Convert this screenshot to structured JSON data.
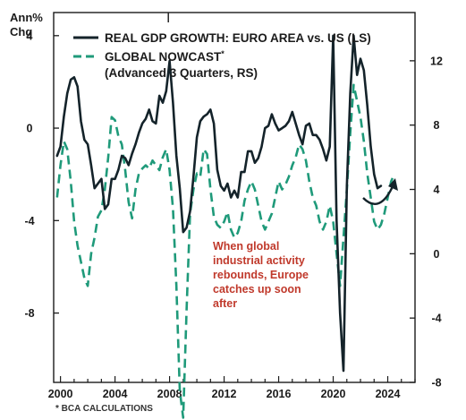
{
  "chart_data": {
    "type": "line",
    "ylabel_left": [
      "Ann%",
      "Chg"
    ],
    "ylim_left": [
      -11,
      5
    ],
    "yticks_left": [
      4,
      0,
      -4,
      -8
    ],
    "ylim_right": [
      -8,
      15
    ],
    "yticks_right": [
      12,
      8,
      4,
      0,
      -4,
      -8
    ],
    "xlim": [
      1999.5,
      2026.0
    ],
    "xticks": [
      2000,
      2004,
      2008,
      2012,
      2016,
      2020,
      2024
    ],
    "legend": {
      "solid_label": "REAL GDP GROWTH: EURO AREA vs. US (LS)",
      "dashed_label": "GLOBAL NOWCAST",
      "dashed_mark": "*",
      "dashed_sub": "(Advanced 3 Quarters, RS)"
    },
    "series": [
      {
        "name": "REAL GDP GROWTH: EURO AREA vs. US (LS)",
        "axis": "left",
        "style": "solid",
        "color": "#14232a",
        "x": [
          1999.75,
          2000.0,
          2000.25,
          2000.5,
          2000.75,
          2001.0,
          2001.25,
          2001.5,
          2001.75,
          2002.0,
          2002.25,
          2002.5,
          2002.75,
          2003.0,
          2003.25,
          2003.5,
          2003.75,
          2004.0,
          2004.25,
          2004.5,
          2004.75,
          2005.0,
          2005.25,
          2005.5,
          2005.75,
          2006.0,
          2006.25,
          2006.5,
          2006.75,
          2007.0,
          2007.25,
          2007.5,
          2007.75,
          2008.0,
          2008.25,
          2008.5,
          2008.75,
          2009.0,
          2009.25,
          2009.5,
          2009.75,
          2010.0,
          2010.25,
          2010.5,
          2010.75,
          2011.0,
          2011.25,
          2011.5,
          2011.75,
          2012.0,
          2012.25,
          2012.5,
          2012.75,
          2013.0,
          2013.25,
          2013.5,
          2013.75,
          2014.0,
          2014.25,
          2014.5,
          2014.75,
          2015.0,
          2015.25,
          2015.5,
          2015.75,
          2016.0,
          2016.25,
          2016.5,
          2016.75,
          2017.0,
          2017.25,
          2017.5,
          2017.75,
          2018.0,
          2018.25,
          2018.5,
          2018.75,
          2019.0,
          2019.25,
          2019.5,
          2019.75,
          2020.0,
          2020.25,
          2020.5,
          2020.75,
          2021.0,
          2021.25,
          2021.5,
          2021.75,
          2022.0,
          2022.25,
          2022.5,
          2022.75,
          2023.0,
          2023.25,
          2023.5
        ],
        "values": [
          -1.2,
          -0.8,
          0.5,
          1.5,
          2.1,
          2.2,
          1.8,
          0.3,
          -0.5,
          -0.7,
          -1.6,
          -2.6,
          -2.4,
          -2.2,
          -3.5,
          -3.3,
          -2.2,
          -2.2,
          -1.8,
          -1.2,
          -1.3,
          -1.6,
          -1.1,
          -0.7,
          -0.2,
          0.2,
          0.4,
          0.8,
          0.3,
          0.2,
          1.4,
          1.1,
          1.6,
          2.9,
          1.1,
          -1.2,
          -2.6,
          -4.5,
          -4.3,
          -3.6,
          -2.1,
          -0.4,
          0.3,
          0.5,
          0.6,
          0.8,
          0.2,
          -1.8,
          -2.5,
          -2.7,
          -2.4,
          -3.0,
          -2.7,
          -3.0,
          -1.9,
          -1.9,
          -1.0,
          -1.0,
          -1.5,
          -1.3,
          -0.8,
          0.0,
          0.1,
          0.6,
          0.2,
          -0.1,
          0.0,
          0.1,
          0.3,
          0.7,
          0.2,
          -0.3,
          -0.7,
          0.1,
          0.2,
          -0.3,
          -0.3,
          -0.5,
          -0.9,
          -1.4,
          -0.8,
          4.0,
          -4.0,
          -8.0,
          -10.5,
          -2.5,
          1.5,
          4.0,
          2.3,
          3.0,
          2.5,
          1.0,
          -0.8,
          -2.0,
          -2.6,
          -2.5
        ]
      },
      {
        "name": "GLOBAL NOWCAST",
        "axis": "right",
        "style": "dashed",
        "color": "#1f9a7a",
        "x": [
          1999.75,
          2000.0,
          2000.25,
          2000.5,
          2000.75,
          2001.0,
          2001.25,
          2001.5,
          2001.75,
          2002.0,
          2002.25,
          2002.5,
          2002.75,
          2003.0,
          2003.25,
          2003.5,
          2003.75,
          2004.0,
          2004.25,
          2004.5,
          2004.75,
          2005.0,
          2005.25,
          2005.5,
          2005.75,
          2006.0,
          2006.25,
          2006.5,
          2006.75,
          2007.0,
          2007.25,
          2007.5,
          2007.75,
          2008.0,
          2008.25,
          2008.5,
          2008.75,
          2009.0,
          2009.25,
          2009.5,
          2009.75,
          2010.0,
          2010.25,
          2010.5,
          2010.75,
          2011.0,
          2011.25,
          2011.5,
          2011.75,
          2012.0,
          2012.25,
          2012.5,
          2012.75,
          2013.0,
          2013.25,
          2013.5,
          2013.75,
          2014.0,
          2014.25,
          2014.5,
          2014.75,
          2015.0,
          2015.25,
          2015.5,
          2015.75,
          2016.0,
          2016.25,
          2016.5,
          2016.75,
          2017.0,
          2017.25,
          2017.5,
          2017.75,
          2018.0,
          2018.25,
          2018.5,
          2018.75,
          2019.0,
          2019.25,
          2019.5,
          2019.75,
          2020.0,
          2020.25,
          2020.5,
          2020.75,
          2021.0,
          2021.25,
          2021.5,
          2021.75,
          2022.0,
          2022.25,
          2022.5,
          2022.75,
          2023.0,
          2023.25,
          2023.5,
          2023.75,
          2024.0,
          2024.25,
          2024.5
        ],
        "values": [
          3.5,
          5.5,
          7.0,
          6.5,
          4.5,
          2.0,
          0.5,
          -0.5,
          -1.5,
          -2.0,
          0.0,
          1.0,
          2.3,
          2.7,
          4.0,
          6.0,
          8.5,
          8.3,
          7.3,
          6.8,
          5.2,
          3.2,
          2.2,
          4.0,
          5.0,
          5.3,
          5.5,
          5.3,
          5.8,
          5.5,
          5.2,
          6.0,
          6.5,
          5.2,
          2.8,
          -2.0,
          -8.5,
          -10.2,
          -3.5,
          2.5,
          4.0,
          5.0,
          4.8,
          6.5,
          6.2,
          4.0,
          2.3,
          1.8,
          1.6,
          2.0,
          2.6,
          1.5,
          1.0,
          1.3,
          2.0,
          3.3,
          4.0,
          4.5,
          4.0,
          3.0,
          2.0,
          1.5,
          2.0,
          2.5,
          3.5,
          4.5,
          4.0,
          4.3,
          4.8,
          5.5,
          6.0,
          6.8,
          6.5,
          5.8,
          4.5,
          3.5,
          3.0,
          2.0,
          1.5,
          2.0,
          3.0,
          2.0,
          0.0,
          -2.0,
          1.0,
          4.0,
          7.5,
          10.5,
          9.5,
          8.5,
          7.0,
          5.0,
          3.5,
          2.0,
          1.5,
          1.8,
          2.5,
          3.5,
          4.5,
          5.0
        ]
      }
    ]
  },
  "annotation": [
    "When global",
    "industrial activity",
    "rebounds, Europe",
    "catches up soon",
    "after"
  ],
  "footnote": "* BCA CALCULATIONS",
  "colors": {
    "solid": "#14232a",
    "dashed": "#1f9a7a",
    "annotation": "#c0392b",
    "arrow": "#14232a"
  }
}
